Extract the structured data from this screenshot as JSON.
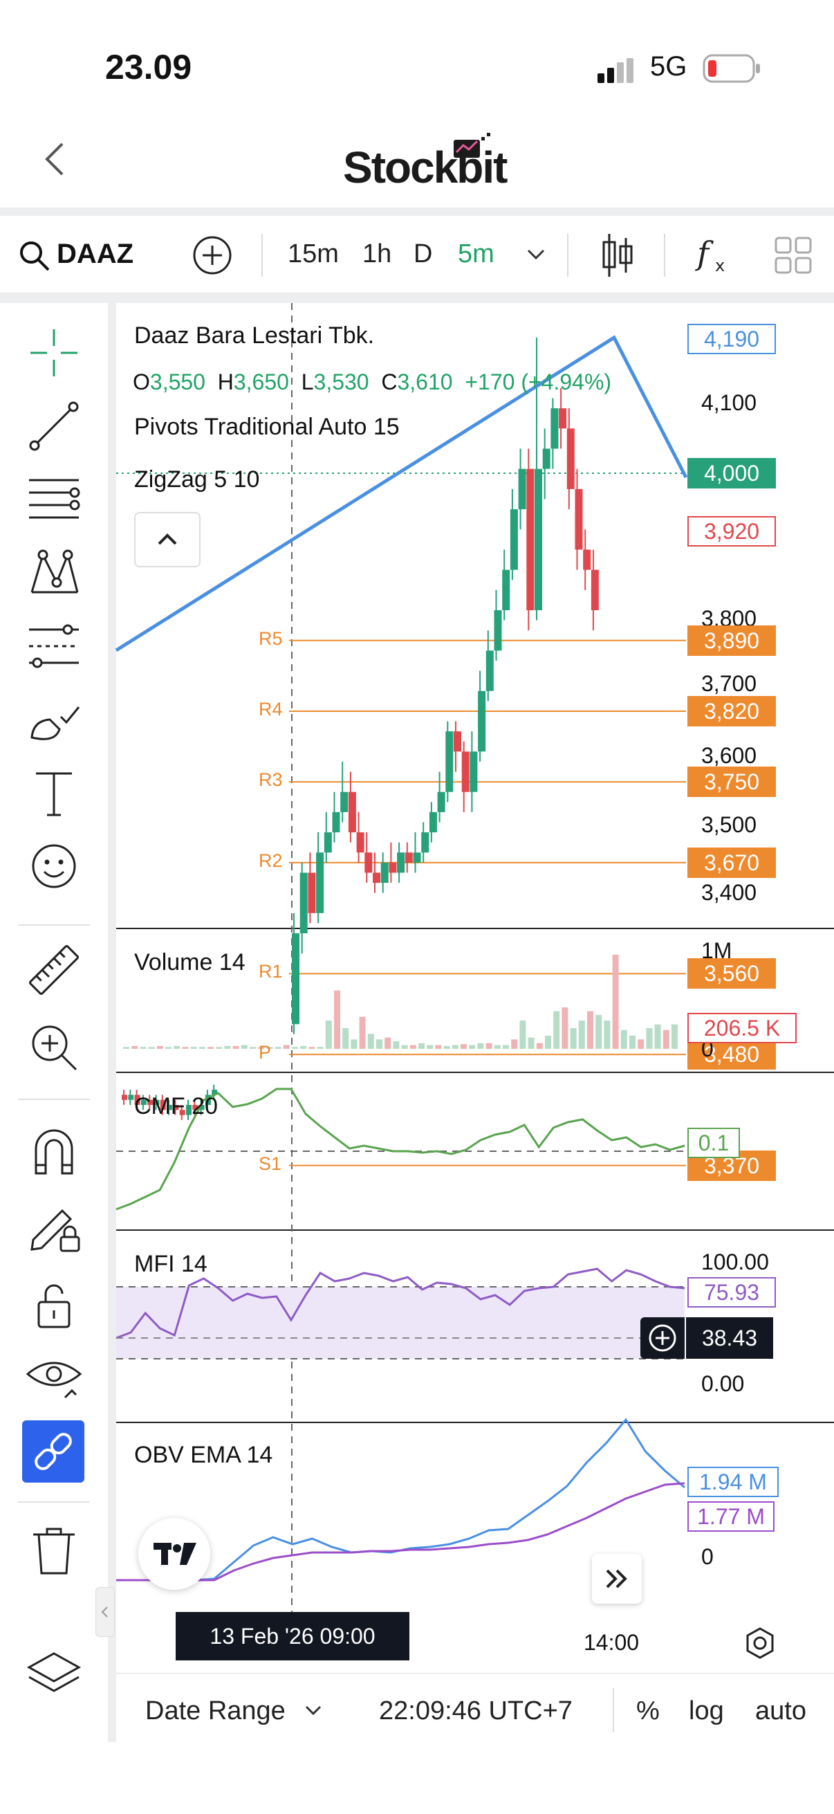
{
  "status": {
    "time": "23.09",
    "network": "5G"
  },
  "header": {
    "logo": "Stockbit"
  },
  "toolbar": {
    "ticker": "DAAZ",
    "intervals": [
      "15m",
      "1h",
      "D",
      "5m"
    ],
    "active_interval": "5m"
  },
  "chart": {
    "title": "Daaz Bara Lestari Tbk.",
    "ohlc": {
      "o_label": "O",
      "o": "3,550",
      "h_label": "H",
      "h": "3,650",
      "l_label": "L",
      "l": "3,530",
      "c_label": "C",
      "c": "3,610",
      "change": "+170 (+4.94%)"
    },
    "indicator_1": "Pivots Traditional Auto 15",
    "indicator_2": "ZigZag 5 10",
    "price_axis": [
      "4,100",
      "3,800",
      "3,700",
      "3,600",
      "3,500",
      "3,400"
    ],
    "zigzag_label": "4,190",
    "current_price": "4,000",
    "last_red": "3,920",
    "pivots": [
      {
        "name": "R5",
        "value": "3,890"
      },
      {
        "name": "R4",
        "value": "3,820"
      },
      {
        "name": "R3",
        "value": "3,750"
      },
      {
        "name": "R2",
        "value": "3,670"
      },
      {
        "name": "R1",
        "value": "3,560"
      },
      {
        "name": "P",
        "value": "3,480"
      },
      {
        "name": "S1",
        "value": "3,370"
      }
    ]
  },
  "volume": {
    "label": "Volume 14",
    "axis_top": "1M",
    "axis_bottom": "0",
    "value": "206.5 K"
  },
  "cmf": {
    "label": "CMF 20",
    "value": "0.1"
  },
  "mfi": {
    "label": "MFI 14",
    "axis_top": "100.00",
    "axis_bottom": "0.00",
    "value": "75.93",
    "crosshair_value": "38.43"
  },
  "obv": {
    "label": "OBV EMA 14",
    "value_obv": "1.94 M",
    "value_ema": "1.77 M",
    "axis_bottom": "0"
  },
  "time_axis": {
    "crosshair_date": "13 Feb '26   09:00",
    "tick": "14:00"
  },
  "bottom": {
    "date_range": "Date Range",
    "clock": "22:09:46 UTC+7",
    "percent": "%",
    "log": "log",
    "auto": "auto"
  },
  "colors": {
    "up": "#26a17a",
    "down": "#e0474c",
    "pivot": "#ee8a2e",
    "zigzag": "#4a90e2",
    "cmf": "#5aa44f",
    "mfi": "#8e5bc5",
    "obv": "#4a90e2",
    "obv_ema": "#9b4dca",
    "active": "#2d62ec"
  }
}
